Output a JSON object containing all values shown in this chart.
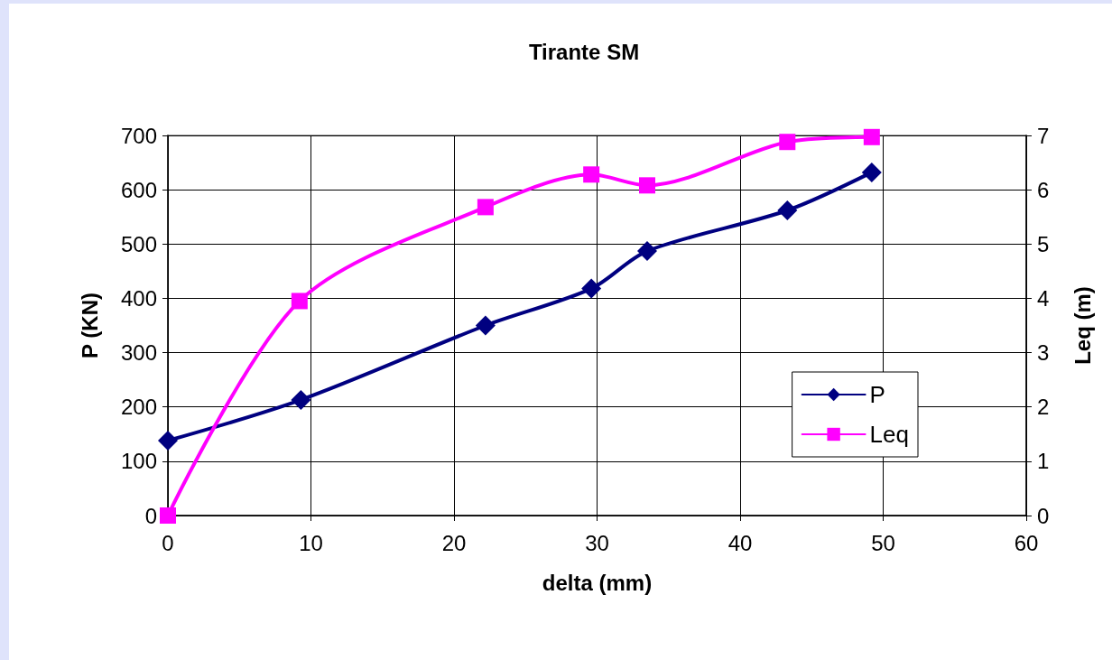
{
  "chart_data": {
    "type": "line",
    "title": "Tirante SM",
    "xlabel": "delta (mm)",
    "ylabel": "P (KN)",
    "y2label": "Leq (m)",
    "xlim": [
      0,
      60
    ],
    "xticks": [
      0,
      10,
      20,
      30,
      40,
      50,
      60
    ],
    "ylim": [
      0,
      700
    ],
    "yticks": [
      0,
      100,
      200,
      300,
      400,
      500,
      600,
      700
    ],
    "y2lim": [
      0,
      7
    ],
    "y2ticks": [
      0,
      1,
      2,
      3,
      4,
      5,
      6,
      7
    ],
    "grid": true,
    "legend": "bottom right",
    "series": [
      {
        "name": "P",
        "color": "#000080",
        "marker": "diamond",
        "x": [
          0,
          9.3,
          22.2,
          29.6,
          33.5,
          43.3,
          49.2
        ],
        "values": [
          138,
          213,
          350,
          418,
          487,
          562,
          632
        ]
      },
      {
        "name": "Leq",
        "color": "#ff00ff",
        "marker": "square",
        "axis": "y2",
        "x": [
          0,
          9.2,
          22.2,
          29.6,
          33.5,
          43.3,
          49.2
        ],
        "values": [
          0,
          3.95,
          5.68,
          6.28,
          6.08,
          6.88,
          6.97
        ]
      }
    ]
  }
}
